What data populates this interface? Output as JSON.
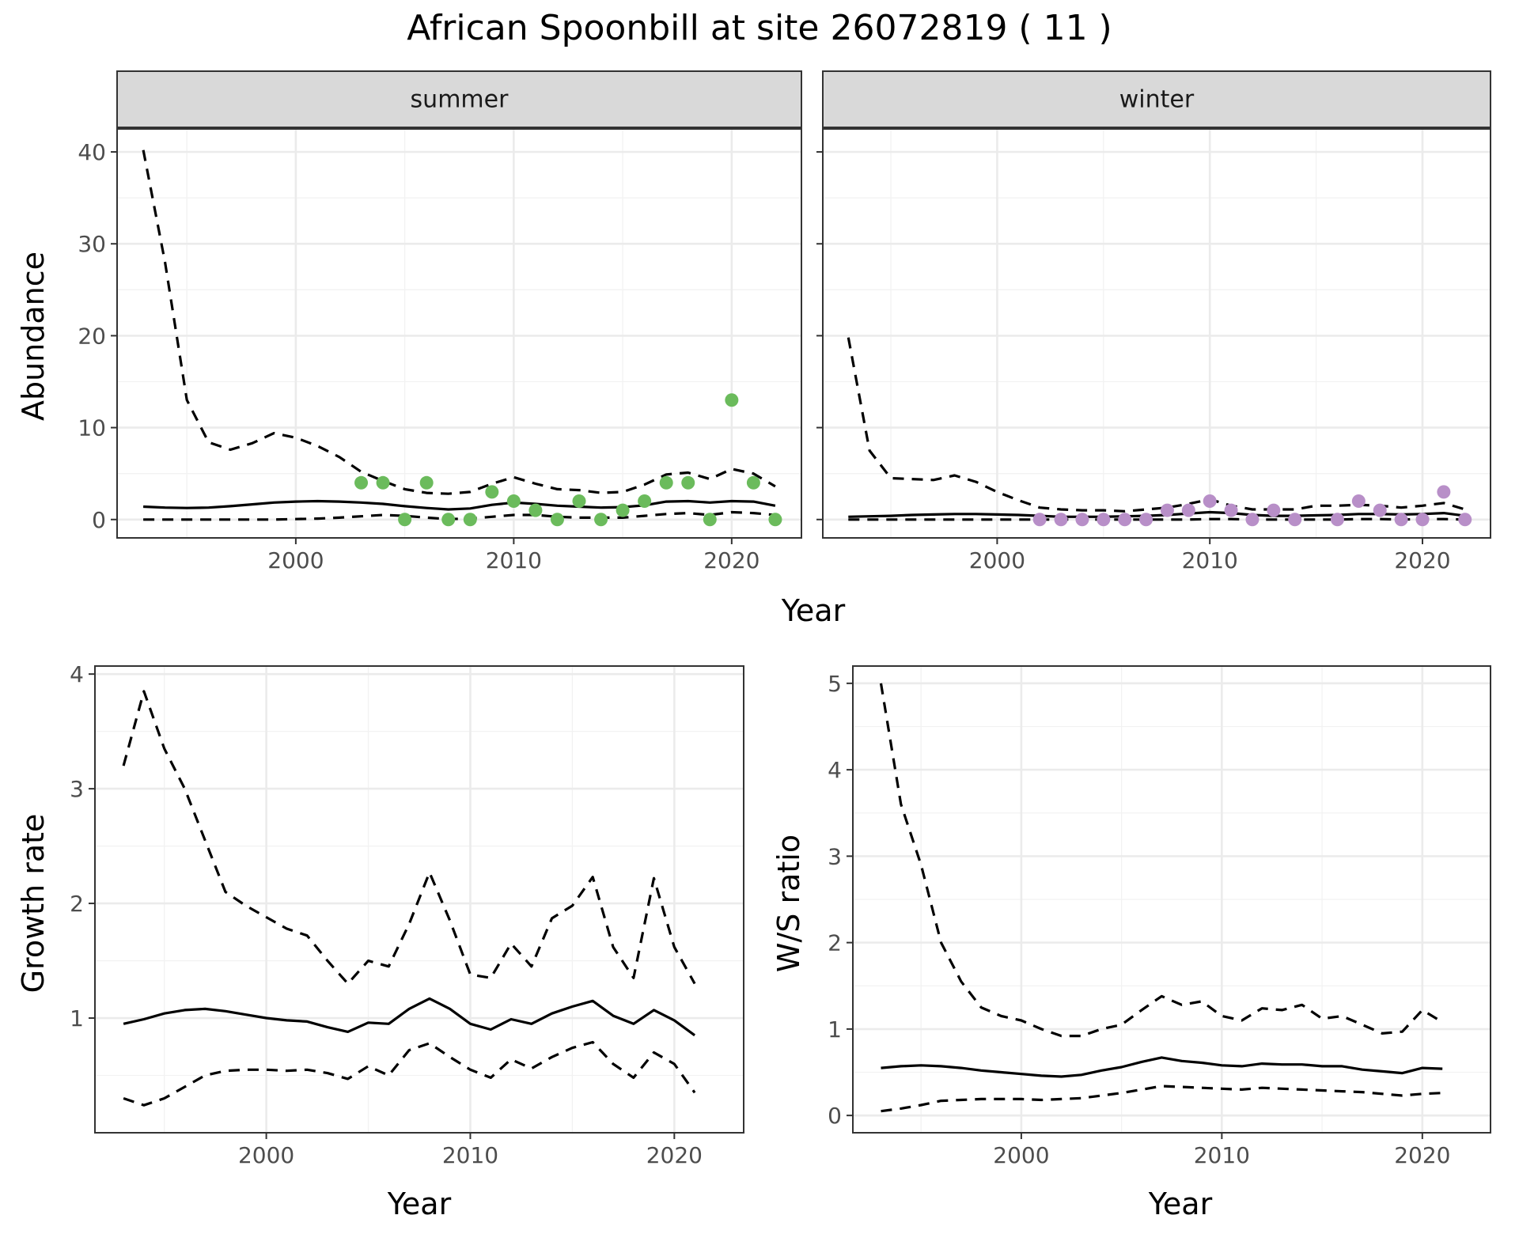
{
  "title": "African Spoonbill at site 26072819 ( 11 )",
  "chart_data": [
    {
      "type": "line",
      "panel": "summer",
      "strip_label": "summer",
      "xlabel": "Year",
      "ylabel": "Abundance",
      "xlim": [
        1991.8,
        2023.2
      ],
      "ylim": [
        -2,
        42.5
      ],
      "x_ticks": [
        2000,
        2010,
        2020
      ],
      "y_ticks": [
        0,
        10,
        20,
        30,
        40
      ],
      "grid": true,
      "point_color": "#6bbb5c",
      "x": [
        1993,
        1994,
        1995,
        1996,
        1997,
        1998,
        1999,
        2000,
        2001,
        2002,
        2003,
        2004,
        2005,
        2006,
        2007,
        2008,
        2009,
        2010,
        2011,
        2012,
        2013,
        2014,
        2015,
        2016,
        2017,
        2018,
        2019,
        2020,
        2021,
        2022
      ],
      "estimate": [
        1.4,
        1.3,
        1.25,
        1.3,
        1.45,
        1.65,
        1.85,
        1.95,
        2.0,
        1.95,
        1.85,
        1.7,
        1.45,
        1.25,
        1.1,
        1.2,
        1.6,
        1.85,
        1.7,
        1.5,
        1.4,
        1.3,
        1.35,
        1.55,
        1.95,
        2.0,
        1.85,
        2.0,
        1.95,
        1.5
      ],
      "upper": [
        40.2,
        28,
        13,
        8.4,
        7.6,
        8.3,
        9.4,
        8.9,
        8.0,
        6.8,
        5.2,
        4.2,
        3.3,
        2.9,
        2.8,
        3.0,
        3.9,
        4.6,
        3.9,
        3.3,
        3.2,
        2.9,
        3.0,
        3.8,
        4.9,
        5.1,
        4.4,
        5.5,
        5.0,
        3.6
      ],
      "lower": [
        0,
        0,
        0,
        0,
        0,
        0,
        0,
        0.05,
        0.1,
        0.2,
        0.35,
        0.5,
        0.4,
        0.2,
        0.05,
        0.1,
        0.3,
        0.5,
        0.5,
        0.3,
        0.2,
        0.2,
        0.2,
        0.4,
        0.6,
        0.7,
        0.5,
        0.8,
        0.7,
        0.5
      ],
      "points": [
        [
          2003,
          4
        ],
        [
          2004,
          4
        ],
        [
          2005,
          0
        ],
        [
          2006,
          4
        ],
        [
          2007,
          0
        ],
        [
          2008,
          0
        ],
        [
          2009,
          3
        ],
        [
          2010,
          2
        ],
        [
          2011,
          1
        ],
        [
          2012,
          0
        ],
        [
          2013,
          2
        ],
        [
          2014,
          0
        ],
        [
          2015,
          1
        ],
        [
          2016,
          2
        ],
        [
          2017,
          4
        ],
        [
          2018,
          4
        ],
        [
          2019,
          0
        ],
        [
          2020,
          13
        ],
        [
          2021,
          4
        ],
        [
          2022,
          0
        ]
      ]
    },
    {
      "type": "line",
      "panel": "winter",
      "strip_label": "winter",
      "xlabel": "Year",
      "ylabel": "Abundance",
      "xlim": [
        1991.8,
        2023.2
      ],
      "ylim": [
        -2,
        42.5
      ],
      "x_ticks": [
        2000,
        2010,
        2020
      ],
      "y_ticks": [
        0,
        10,
        20,
        30,
        40
      ],
      "grid": true,
      "point_color": "#b88fc8",
      "x": [
        1993,
        1994,
        1995,
        1996,
        1997,
        1998,
        1999,
        2000,
        2001,
        2002,
        2003,
        2004,
        2005,
        2006,
        2007,
        2008,
        2009,
        2010,
        2011,
        2012,
        2013,
        2014,
        2015,
        2016,
        2017,
        2018,
        2019,
        2020,
        2021,
        2022
      ],
      "estimate": [
        0.3,
        0.35,
        0.4,
        0.5,
        0.55,
        0.6,
        0.6,
        0.55,
        0.5,
        0.4,
        0.3,
        0.3,
        0.3,
        0.35,
        0.4,
        0.5,
        0.65,
        0.8,
        0.7,
        0.5,
        0.4,
        0.4,
        0.45,
        0.5,
        0.6,
        0.6,
        0.55,
        0.6,
        0.7,
        0.4
      ],
      "upper": [
        19.8,
        7.5,
        4.5,
        4.4,
        4.3,
        4.8,
        4.1,
        3.0,
        2.1,
        1.3,
        1.1,
        1.0,
        1.0,
        0.9,
        1.1,
        1.3,
        1.7,
        2.2,
        1.5,
        1.1,
        1.1,
        1.1,
        1.5,
        1.5,
        1.6,
        1.5,
        1.3,
        1.5,
        1.8,
        1.1
      ],
      "lower": [
        0,
        0,
        0,
        0,
        0,
        0,
        0,
        0,
        0,
        0,
        0,
        0,
        0,
        0,
        0,
        0,
        0,
        0.05,
        0.05,
        0,
        0,
        0,
        0,
        0,
        0.05,
        0.05,
        0,
        0.05,
        0.05,
        0
      ],
      "points": [
        [
          2002,
          0
        ],
        [
          2003,
          0
        ],
        [
          2004,
          0
        ],
        [
          2005,
          0
        ],
        [
          2006,
          0
        ],
        [
          2007,
          0
        ],
        [
          2008,
          1
        ],
        [
          2009,
          1
        ],
        [
          2010,
          2
        ],
        [
          2011,
          1
        ],
        [
          2012,
          0
        ],
        [
          2013,
          1
        ],
        [
          2014,
          0
        ],
        [
          2016,
          0
        ],
        [
          2017,
          2
        ],
        [
          2018,
          1
        ],
        [
          2019,
          0
        ],
        [
          2020,
          0
        ],
        [
          2021,
          3
        ],
        [
          2022,
          0
        ]
      ]
    },
    {
      "type": "line",
      "panel": "growth",
      "xlabel": "Year",
      "ylabel": "Growth rate",
      "xlim": [
        1991.6,
        2023.4
      ],
      "ylim": [
        0.0,
        4.07
      ],
      "x_ticks": [
        2000,
        2010,
        2020
      ],
      "y_ticks": [
        1,
        2,
        3,
        4
      ],
      "grid": true,
      "x": [
        1993,
        1994,
        1995,
        1996,
        1997,
        1998,
        1999,
        2000,
        2001,
        2002,
        2003,
        2004,
        2005,
        2006,
        2007,
        2008,
        2009,
        2010,
        2011,
        2012,
        2013,
        2014,
        2015,
        2016,
        2017,
        2018,
        2019,
        2020,
        2021
      ],
      "estimate": [
        0.95,
        0.99,
        1.04,
        1.07,
        1.08,
        1.06,
        1.03,
        1.0,
        0.98,
        0.97,
        0.92,
        0.88,
        0.96,
        0.95,
        1.08,
        1.17,
        1.08,
        0.95,
        0.9,
        0.99,
        0.95,
        1.04,
        1.1,
        1.15,
        1.02,
        0.95,
        1.07,
        0.98,
        0.85
      ],
      "upper": [
        3.2,
        3.85,
        3.35,
        3.0,
        2.55,
        2.1,
        1.98,
        1.88,
        1.78,
        1.72,
        1.5,
        1.3,
        1.5,
        1.45,
        1.82,
        2.27,
        1.85,
        1.38,
        1.35,
        1.65,
        1.45,
        1.87,
        1.98,
        2.23,
        1.62,
        1.35,
        2.22,
        1.62,
        1.3
      ],
      "lower": [
        0.3,
        0.24,
        0.3,
        0.4,
        0.5,
        0.54,
        0.55,
        0.55,
        0.54,
        0.55,
        0.52,
        0.47,
        0.58,
        0.5,
        0.72,
        0.78,
        0.66,
        0.55,
        0.48,
        0.64,
        0.56,
        0.66,
        0.74,
        0.79,
        0.6,
        0.48,
        0.7,
        0.6,
        0.35
      ]
    },
    {
      "type": "line",
      "panel": "ratio",
      "xlabel": "Year",
      "ylabel": "W/S ratio",
      "xlim": [
        1991.6,
        2023.4
      ],
      "ylim": [
        -0.2,
        5.2
      ],
      "x_ticks": [
        2000,
        2010,
        2020
      ],
      "y_ticks": [
        0,
        1,
        2,
        3,
        4,
        5
      ],
      "grid": true,
      "x": [
        1993,
        1994,
        1995,
        1996,
        1997,
        1998,
        1999,
        2000,
        2001,
        2002,
        2003,
        2004,
        2005,
        2006,
        2007,
        2008,
        2009,
        2010,
        2011,
        2012,
        2013,
        2014,
        2015,
        2016,
        2017,
        2018,
        2019,
        2020,
        2021
      ],
      "estimate": [
        0.55,
        0.57,
        0.58,
        0.57,
        0.55,
        0.52,
        0.5,
        0.48,
        0.46,
        0.45,
        0.47,
        0.52,
        0.56,
        0.62,
        0.67,
        0.63,
        0.61,
        0.58,
        0.57,
        0.6,
        0.59,
        0.59,
        0.57,
        0.57,
        0.53,
        0.51,
        0.49,
        0.55,
        0.54
      ],
      "upper": [
        5.0,
        3.6,
        2.9,
        2.0,
        1.55,
        1.25,
        1.15,
        1.1,
        1.0,
        0.92,
        0.92,
        1.0,
        1.05,
        1.22,
        1.38,
        1.28,
        1.32,
        1.15,
        1.1,
        1.24,
        1.22,
        1.28,
        1.12,
        1.15,
        1.05,
        0.95,
        0.97,
        1.22,
        1.08
      ],
      "lower": [
        0.05,
        0.08,
        0.12,
        0.17,
        0.18,
        0.19,
        0.19,
        0.19,
        0.18,
        0.19,
        0.2,
        0.23,
        0.26,
        0.3,
        0.34,
        0.33,
        0.32,
        0.31,
        0.3,
        0.32,
        0.31,
        0.3,
        0.29,
        0.28,
        0.27,
        0.25,
        0.23,
        0.25,
        0.26
      ]
    }
  ]
}
